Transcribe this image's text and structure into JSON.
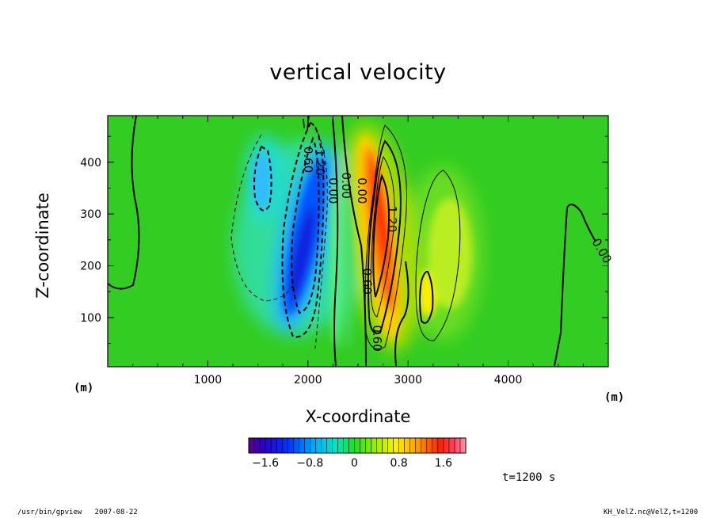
{
  "chart_data": {
    "type": "heatmap",
    "title": "vertical velocity",
    "xlabel": "X-coordinate",
    "ylabel": "Z-coordinate",
    "x_unit": "(m)",
    "y_unit": "(m)",
    "xlim": [
      0,
      5000
    ],
    "ylim": [
      5,
      490
    ],
    "x_ticks": [
      1000,
      2000,
      3000,
      4000
    ],
    "y_ticks": [
      100,
      200,
      300,
      400
    ],
    "colorbar": {
      "range": [
        -1.9,
        2.0
      ],
      "tick_values": [
        -1.6,
        -0.8,
        0,
        0.8,
        1.6
      ],
      "tick_labels": [
        "−1.6",
        "−0.8",
        "0",
        "0.8",
        "1.6"
      ]
    },
    "contour_labels": [
      {
        "text": "0.60",
        "x": 1960,
        "z": 405
      },
      {
        "text": "1.20",
        "x": 2080,
        "z": 400
      },
      {
        "text": "0.00",
        "x": 2210,
        "z": 345
      },
      {
        "text": "0.00",
        "x": 2340,
        "z": 355
      },
      {
        "text": "0.00",
        "x": 2500,
        "z": 345
      },
      {
        "text": "1.20",
        "x": 2800,
        "z": 290
      },
      {
        "text": "0.60",
        "x": 2550,
        "z": 170
      },
      {
        "text": "0.60",
        "x": 2650,
        "z": 60
      },
      {
        "text": "0.00",
        "x": 4900,
        "z": 225
      }
    ],
    "features": [
      {
        "name": "strong downdraft",
        "x": 1950,
        "z": 230,
        "value": -1.9
      },
      {
        "name": "upper downdraft",
        "x": 1520,
        "z": 380,
        "value": -0.8
      },
      {
        "name": "strong updraft",
        "x": 2680,
        "z": 270,
        "value": 1.9
      },
      {
        "name": "weak updraft",
        "x": 3230,
        "z": 170,
        "value": 0.7
      }
    ]
  },
  "annotations": {
    "time": "t=1200 s",
    "footer_left": "/usr/bin/gpview   2007-08-22",
    "footer_right": "KH_VelZ.nc@VelZ,t=1200"
  }
}
